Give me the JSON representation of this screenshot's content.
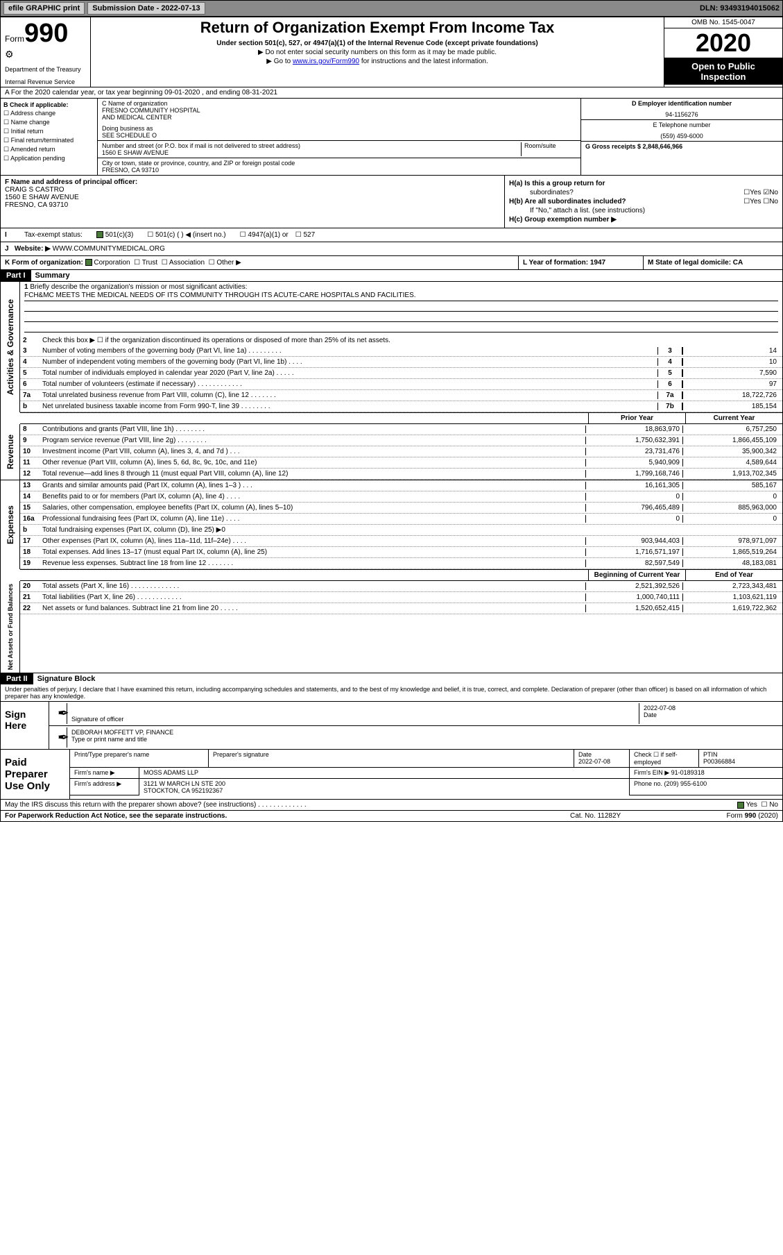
{
  "topbar": {
    "efile": "efile GRAPHIC print",
    "submission_label": "Submission Date - 2022-07-13",
    "dln_label": "DLN: 93493194015062"
  },
  "header": {
    "form_word": "Form",
    "form_num": "990",
    "dept": "Department of the Treasury",
    "irs": "Internal Revenue Service",
    "title": "Return of Organization Exempt From Income Tax",
    "subtitle": "Under section 501(c), 527, or 4947(a)(1) of the Internal Revenue Code (except private foundations)",
    "instr1": "▶ Do not enter social security numbers on this form as it may be made public.",
    "instr2_pre": "▶ Go to ",
    "instr2_link": "www.irs.gov/Form990",
    "instr2_post": " for instructions and the latest information.",
    "omb": "OMB No. 1545-0047",
    "year": "2020",
    "open1": "Open to Public",
    "open2": "Inspection"
  },
  "row_a": {
    "text": "For the 2020 calendar year, or tax year beginning 09-01-2020   , and ending 08-31-2021"
  },
  "col_b": {
    "label": "B Check if applicable:",
    "items": [
      "Address change",
      "Name change",
      "Initial return",
      "Final return/terminated",
      "Amended return",
      "Application pending"
    ]
  },
  "col_c": {
    "name_label": "C Name of organization",
    "name": "FRESNO COMMUNITY HOSPITAL",
    "name2": "AND MEDICAL CENTER",
    "dba_label": "Doing business as",
    "dba": "SEE SCHEDULE O",
    "addr_label": "Number and street (or P.O. box if mail is not delivered to street address)",
    "room_label": "Room/suite",
    "addr": "1560 E SHAW AVENUE",
    "city_label": "City or town, state or province, country, and ZIP or foreign postal code",
    "city": "FRESNO, CA  93710"
  },
  "col_d": {
    "label": "D Employer identification number",
    "ein": "94-1156276"
  },
  "col_e": {
    "label": "E Telephone number",
    "phone": "(559) 459-6000"
  },
  "col_g": {
    "label": "G Gross receipts $ 2,848,646,966"
  },
  "col_f": {
    "label": "F  Name and address of principal officer:",
    "name": "CRAIG S CASTRO",
    "addr": "1560 E SHAW AVENUE",
    "city": "FRESNO, CA  93710"
  },
  "col_h": {
    "ha": "H(a)  Is this a group return for",
    "ha2": "subordinates?",
    "hb": "H(b)  Are all subordinates included?",
    "hnote": "If \"No,\" attach a list. (see instructions)",
    "hc": "H(c)  Group exemption number ▶"
  },
  "row_i": {
    "label": "Tax-exempt status:",
    "opts": [
      "501(c)(3)",
      "501(c) (   ) ◀ (insert no.)",
      "4947(a)(1) or",
      "527"
    ]
  },
  "row_j": {
    "label": "J",
    "website_label": "Website: ▶",
    "website": " WWW.COMMUNITYMEDICAL.ORG"
  },
  "row_k": {
    "label": "K Form of organization:",
    "opts": [
      "Corporation",
      "Trust",
      "Association",
      "Other ▶"
    ]
  },
  "row_l": {
    "label": "L Year of formation: 1947"
  },
  "row_m": {
    "label": "M State of legal domicile: CA"
  },
  "part1": {
    "header": "Part I",
    "title": "Summary",
    "l1": "Briefly describe the organization's mission or most significant activities:",
    "l1text": "FCH&MC MEETS THE MEDICAL NEEDS OF ITS COMMUNITY THROUGH ITS ACUTE-CARE HOSPITALS AND FACILITIES.",
    "l2": "Check this box ▶ ☐  if the organization discontinued its operations or disposed of more than 25% of its net assets.",
    "lines_gov": [
      {
        "n": "3",
        "d": "Number of voting members of the governing body (Part VI, line 1a)   .    .    .    .    .    .    .    .    .",
        "b": "3",
        "v": "14"
      },
      {
        "n": "4",
        "d": "Number of independent voting members of the governing body (Part VI, line 1b)   .    .    .    .",
        "b": "4",
        "v": "10"
      },
      {
        "n": "5",
        "d": "Total number of individuals employed in calendar year 2020 (Part V, line 2a)   .    .    .    .    .",
        "b": "5",
        "v": "7,590"
      },
      {
        "n": "6",
        "d": "Total number of volunteers (estimate if necessary)    .    .    .    .    .    .    .    .    .    .    .    .",
        "b": "6",
        "v": "97"
      },
      {
        "n": "7a",
        "d": "Total unrelated business revenue from Part VIII, column (C), line 12   .    .    .    .    .    .    .",
        "b": "7a",
        "v": "18,722,726"
      },
      {
        "n": "b",
        "d": "Net unrelated business taxable income from Form 990-T, line 39   .    .    .    .    .    .    .    .",
        "b": "7b",
        "v": "185,154"
      }
    ],
    "yr_prior": "Prior Year",
    "yr_curr": "Current Year",
    "lines_rev": [
      {
        "n": "8",
        "d": "Contributions and grants (Part VIII, line 1h)   .    .    .    .    .    .    .    .",
        "p": "18,863,970",
        "c": "6,757,250"
      },
      {
        "n": "9",
        "d": "Program service revenue (Part VIII, line 2g)   .    .    .    .    .    .    .    .",
        "p": "1,750,632,391",
        "c": "1,866,455,109"
      },
      {
        "n": "10",
        "d": "Investment income (Part VIII, column (A), lines 3, 4, and 7d )    .    .    .",
        "p": "23,731,476",
        "c": "35,900,342"
      },
      {
        "n": "11",
        "d": "Other revenue (Part VIII, column (A), lines 5, 6d, 8c, 9c, 10c, and 11e)",
        "p": "5,940,909",
        "c": "4,589,644"
      },
      {
        "n": "12",
        "d": "Total revenue—add lines 8 through 11 (must equal Part VIII, column (A), line 12)",
        "p": "1,799,168,746",
        "c": "1,913,702,345"
      }
    ],
    "lines_exp": [
      {
        "n": "13",
        "d": "Grants and similar amounts paid (Part IX, column (A), lines 1–3 )   .    .    .",
        "p": "16,161,305",
        "c": "585,167"
      },
      {
        "n": "14",
        "d": "Benefits paid to or for members (Part IX, column (A), line 4)   .    .    .    .",
        "p": "0",
        "c": "0"
      },
      {
        "n": "15",
        "d": "Salaries, other compensation, employee benefits (Part IX, column (A), lines 5–10)",
        "p": "796,465,489",
        "c": "885,963,000"
      },
      {
        "n": "16a",
        "d": "Professional fundraising fees (Part IX, column (A), line 11e)   .    .    .    .",
        "p": "0",
        "c": "0"
      },
      {
        "n": "b",
        "d": "Total fundraising expenses (Part IX, column (D), line 25) ▶0",
        "p": "",
        "c": "",
        "shaded": true
      },
      {
        "n": "17",
        "d": "Other expenses (Part IX, column (A), lines 11a–11d, 11f–24e)   .    .    .    .",
        "p": "903,944,403",
        "c": "978,971,097"
      },
      {
        "n": "18",
        "d": "Total expenses. Add lines 13–17 (must equal Part IX, column (A), line 25)",
        "p": "1,716,571,197",
        "c": "1,865,519,264"
      },
      {
        "n": "19",
        "d": "Revenue less expenses. Subtract line 18 from line 12  .    .    .    .    .    .    .",
        "p": "82,597,549",
        "c": "48,183,081"
      }
    ],
    "yr_beg": "Beginning of Current Year",
    "yr_end": "End of Year",
    "lines_net": [
      {
        "n": "20",
        "d": "Total assets (Part X, line 16)   .    .    .    .    .    .    .    .    .    .    .    .    .",
        "p": "2,521,392,526",
        "c": "2,723,343,481"
      },
      {
        "n": "21",
        "d": "Total liabilities (Part X, line 26)   .    .    .    .    .    .    .    .    .    .    .    .",
        "p": "1,000,740,111",
        "c": "1,103,621,119"
      },
      {
        "n": "22",
        "d": "Net assets or fund balances. Subtract line 21 from line 20  .    .    .    .    .",
        "p": "1,520,652,415",
        "c": "1,619,722,362"
      }
    ],
    "side_gov": "Activities & Governance",
    "side_rev": "Revenue",
    "side_exp": "Expenses",
    "side_net": "Net Assets or Fund Balances"
  },
  "part2": {
    "header": "Part II",
    "title": "Signature Block",
    "decl": "Under penalties of perjury, I declare that I have examined this return, including accompanying schedules and statements, and to the best of my knowledge and belief, it is true, correct, and complete. Declaration of preparer (other than officer) is based on all information of which preparer has any knowledge."
  },
  "sign": {
    "left": "Sign Here",
    "sig_label": "Signature of officer",
    "date": "2022-07-08",
    "date_label": "Date",
    "name": "DEBORAH MOFFETT VP, FINANCE",
    "name_label": "Type or print name and title"
  },
  "prep": {
    "left": "Paid Preparer Use Only",
    "h1": "Print/Type preparer's name",
    "h2": "Preparer's signature",
    "h3": "Date",
    "h3v": "2022-07-08",
    "h4": "Check ☐ if self-employed",
    "h5": "PTIN",
    "h5v": "P00366884",
    "firm_label": "Firm's name    ▶",
    "firm": "MOSS ADAMS LLP",
    "ein_label": "Firm's EIN ▶",
    "ein": "91-0189318",
    "addr_label": "Firm's address ▶",
    "addr": "3121 W MARCH LN STE 200",
    "addr2": "STOCKTON, CA  952192367",
    "phone_label": "Phone no. (209) 955-6100"
  },
  "discuss": "May the IRS discuss this return with the preparer shown above? (see instructions)    .    .    .    .    .    .    .    .    .    .    .    .    .",
  "footer": {
    "left": "For Paperwork Reduction Act Notice, see the separate instructions.",
    "mid": "Cat. No. 11282Y",
    "right": "Form 990 (2020)"
  }
}
